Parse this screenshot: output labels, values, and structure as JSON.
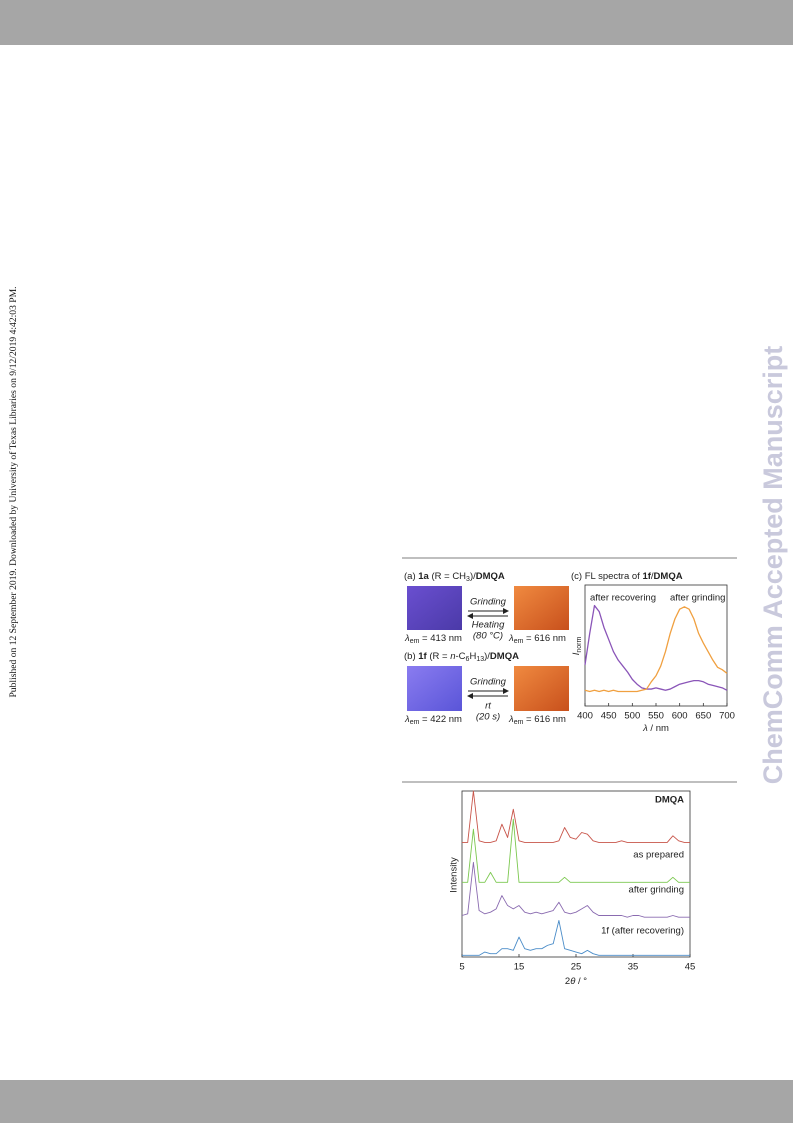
{
  "side_note": "Published on 12 September 2019. Downloaded by University of Texas Libraries on 9/12/2019 4:42:03 PM.",
  "watermark": "ChemComm Accepted Manuscript",
  "figure_1": {
    "panel_a": {
      "title_parts": [
        "(a) ",
        "1a",
        " (R = CH",
        "3",
        ")/",
        "DMQA"
      ],
      "arrow_top": "Grinding",
      "arrow_bottom": [
        "Heating",
        "(80 °C)"
      ],
      "left_label_parts": [
        "λ",
        "em",
        " = 413 nm"
      ],
      "right_label_parts": [
        "λ",
        "em",
        " = 616 nm"
      ]
    },
    "panel_b": {
      "title_parts": [
        "(b) ",
        "1f",
        " (R = ",
        "n",
        "-C",
        "6",
        "H",
        "13",
        ")/",
        "DMQA"
      ],
      "arrow_top": "Grinding",
      "arrow_bottom": [
        "rt",
        "(20 s)"
      ],
      "left_label_parts": [
        "λ",
        "em",
        " = 422 nm"
      ],
      "right_label_parts": [
        "λ",
        "em",
        " = 616 nm"
      ]
    }
  },
  "chart_data": [
    {
      "type": "line",
      "title_parts": [
        "(c) FL spectra of ",
        "1f",
        "/",
        "DMQA"
      ],
      "x": [
        400,
        410,
        420,
        430,
        440,
        450,
        460,
        470,
        480,
        490,
        500,
        510,
        520,
        530,
        540,
        550,
        560,
        570,
        580,
        590,
        600,
        610,
        620,
        630,
        640,
        650,
        660,
        670,
        680,
        690,
        700
      ],
      "xlim": [
        400,
        700
      ],
      "xticks": [
        400,
        450,
        500,
        550,
        600,
        650,
        700
      ],
      "xlabel_parts": [
        "λ",
        " / nm"
      ],
      "ylabel_parts": [
        "I",
        "norm"
      ],
      "ylim": [
        0,
        1
      ],
      "series": [
        {
          "name": "after recovering",
          "color": "#8a55b8",
          "values": [
            0.34,
            0.6,
            0.83,
            0.78,
            0.65,
            0.55,
            0.45,
            0.38,
            0.33,
            0.28,
            0.22,
            0.18,
            0.15,
            0.14,
            0.14,
            0.15,
            0.14,
            0.13,
            0.14,
            0.16,
            0.18,
            0.19,
            0.2,
            0.21,
            0.21,
            0.2,
            0.18,
            0.17,
            0.16,
            0.15,
            0.13
          ]
        },
        {
          "name": "after grinding",
          "color": "#f0a040",
          "values": [
            0.13,
            0.12,
            0.13,
            0.12,
            0.13,
            0.12,
            0.13,
            0.12,
            0.12,
            0.12,
            0.12,
            0.12,
            0.13,
            0.14,
            0.2,
            0.25,
            0.33,
            0.45,
            0.6,
            0.72,
            0.8,
            0.82,
            0.8,
            0.72,
            0.6,
            0.52,
            0.45,
            0.38,
            0.32,
            0.3,
            0.27
          ]
        }
      ]
    },
    {
      "type": "line",
      "x": [
        5,
        6,
        7,
        8,
        9,
        10,
        11,
        12,
        13,
        14,
        15,
        16,
        17,
        18,
        19,
        20,
        21,
        22,
        23,
        24,
        25,
        26,
        27,
        28,
        29,
        30,
        31,
        32,
        33,
        34,
        35,
        36,
        37,
        38,
        39,
        40,
        41,
        42,
        43,
        44,
        45
      ],
      "xlim": [
        5,
        45
      ],
      "xticks": [
        5,
        15,
        25,
        35,
        45
      ],
      "xlabel_parts": [
        "2",
        "θ",
        " / °"
      ],
      "ylabel": "Intensity",
      "ylim": [
        0,
        1
      ],
      "series": [
        {
          "name": "DMQA",
          "color": "#c8554a",
          "values": [
            0.69,
            0.69,
            1.0,
            0.7,
            0.69,
            0.69,
            0.7,
            0.8,
            0.72,
            0.89,
            0.7,
            0.69,
            0.69,
            0.69,
            0.69,
            0.69,
            0.69,
            0.7,
            0.78,
            0.72,
            0.71,
            0.75,
            0.74,
            0.7,
            0.69,
            0.69,
            0.69,
            0.69,
            0.7,
            0.69,
            0.69,
            0.69,
            0.69,
            0.69,
            0.69,
            0.69,
            0.69,
            0.73,
            0.7,
            0.69,
            0.69
          ]
        },
        {
          "name": "as prepared",
          "color": "#7cc850",
          "values": [
            0.45,
            0.45,
            0.77,
            0.45,
            0.45,
            0.51,
            0.45,
            0.45,
            0.45,
            0.83,
            0.45,
            0.45,
            0.45,
            0.45,
            0.45,
            0.45,
            0.45,
            0.45,
            0.48,
            0.45,
            0.45,
            0.45,
            0.45,
            0.45,
            0.45,
            0.45,
            0.45,
            0.45,
            0.45,
            0.45,
            0.45,
            0.45,
            0.45,
            0.45,
            0.45,
            0.45,
            0.45,
            0.48,
            0.45,
            0.45,
            0.45
          ]
        },
        {
          "name": "after grinding",
          "color": "#8a6bb0",
          "values": [
            0.25,
            0.26,
            0.57,
            0.28,
            0.26,
            0.27,
            0.29,
            0.37,
            0.31,
            0.29,
            0.31,
            0.27,
            0.26,
            0.27,
            0.26,
            0.27,
            0.28,
            0.33,
            0.27,
            0.26,
            0.27,
            0.29,
            0.31,
            0.27,
            0.25,
            0.25,
            0.25,
            0.25,
            0.25,
            0.24,
            0.25,
            0.25,
            0.24,
            0.24,
            0.24,
            0.24,
            0.24,
            0.25,
            0.24,
            0.24,
            0.24
          ]
        },
        {
          "name": "1f (after recovering)",
          "color": "#4a8cc8",
          "values": [
            0.01,
            0.01,
            0.01,
            0.01,
            0.03,
            0.02,
            0.02,
            0.05,
            0.05,
            0.04,
            0.12,
            0.05,
            0.04,
            0.05,
            0.05,
            0.07,
            0.08,
            0.22,
            0.05,
            0.04,
            0.03,
            0.02,
            0.04,
            0.02,
            0.01,
            0.01,
            0.01,
            0.01,
            0.01,
            0.01,
            0.01,
            0.01,
            0.01,
            0.01,
            0.01,
            0.01,
            0.01,
            0.01,
            0.01,
            0.01,
            0.01
          ]
        }
      ]
    }
  ]
}
